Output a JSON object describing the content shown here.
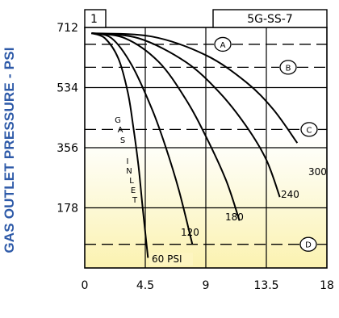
{
  "chart_data": {
    "type": "line",
    "panel_number": "1",
    "chart_code": "5G-SS-7",
    "ylabel": "GAS OUTLET PRESSURE - PSI",
    "xlabel": "",
    "xlim": [
      0,
      18
    ],
    "ylim": [
      0,
      712
    ],
    "x_ticks": [
      "0",
      "4.5",
      "9",
      "13.5",
      "18"
    ],
    "y_ticks": [
      "178",
      "356",
      "534",
      "712"
    ],
    "inlet_label": [
      "G",
      "A",
      "S",
      "I",
      "N",
      "L",
      "E",
      "T"
    ],
    "grid": true,
    "series": [
      {
        "name": "60 PSI",
        "points": [
          [
            0.5,
            695
          ],
          [
            1.5,
            680
          ],
          [
            2.5,
            620
          ],
          [
            3.2,
            520
          ],
          [
            3.6,
            420
          ],
          [
            4.0,
            300
          ],
          [
            4.3,
            180
          ],
          [
            4.7,
            30
          ]
        ]
      },
      {
        "name": "120",
        "points": [
          [
            0.5,
            695
          ],
          [
            2.0,
            680
          ],
          [
            3.5,
            600
          ],
          [
            5.0,
            470
          ],
          [
            6.0,
            360
          ],
          [
            7.0,
            230
          ],
          [
            8.0,
            70
          ]
        ]
      },
      {
        "name": "180",
        "points": [
          [
            0.5,
            695
          ],
          [
            3.0,
            680
          ],
          [
            5.5,
            610
          ],
          [
            7.5,
            500
          ],
          [
            9.0,
            390
          ],
          [
            10.5,
            260
          ],
          [
            11.5,
            140
          ]
        ]
      },
      {
        "name": "240",
        "points": [
          [
            0.5,
            695
          ],
          [
            4.0,
            680
          ],
          [
            7.5,
            610
          ],
          [
            10.0,
            520
          ],
          [
            12.0,
            420
          ],
          [
            13.5,
            320
          ],
          [
            14.5,
            210
          ]
        ]
      },
      {
        "name": "300",
        "points": [
          [
            0.5,
            695
          ],
          [
            5.0,
            685
          ],
          [
            9.0,
            630
          ],
          [
            12.0,
            550
          ],
          [
            14.0,
            470
          ],
          [
            15.8,
            370
          ]
        ]
      }
    ],
    "reference_lines": [
      {
        "label": "A",
        "y": 662
      },
      {
        "label": "B",
        "y": 594
      },
      {
        "label": "C",
        "y": 410
      },
      {
        "label": "D",
        "y": 70
      }
    ],
    "colors": {
      "curve": "#000000",
      "ylabel": "#2e5aa8",
      "band_top": "#ffffff",
      "band_mid": "#fdfbe4",
      "band_low": "#fbf2b0"
    }
  }
}
